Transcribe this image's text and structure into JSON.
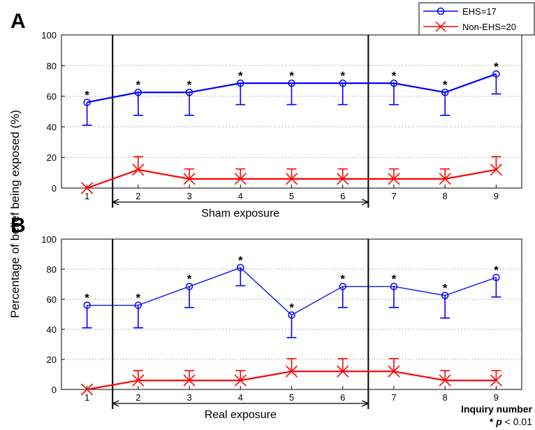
{
  "figure": {
    "ylabel": "Percentage of belief being exposed (%)",
    "xlabel": "Inquiry number",
    "footnote": "* p < 0.01",
    "footnote_star": "*",
    "footnote_p": "p",
    "footnote_rest": " < 0.01",
    "colors": {
      "ehs": "#0000ff",
      "non_ehs": "#ff0000",
      "axis": "#000000",
      "grid": "#808080"
    }
  },
  "chart_data": [
    {
      "type": "line",
      "panel": "A",
      "x": [
        1,
        2,
        3,
        4,
        5,
        6,
        7,
        8,
        9
      ],
      "xlim": [
        0.5,
        9.5
      ],
      "ylim": [
        0,
        100
      ],
      "yticks": [
        0,
        20,
        40,
        60,
        80,
        100
      ],
      "grid": true,
      "legend": {
        "position": "top-right",
        "entries": [
          "EHS=17",
          "Non-EHS=20"
        ]
      },
      "bracket_label": "Sham exposure",
      "bracket_range": [
        1.5,
        6.5
      ],
      "series": [
        {
          "name": "EHS=17",
          "color": "#0000ff",
          "marker": "circle",
          "values": [
            56,
            62.5,
            62.5,
            68.5,
            68.5,
            68.5,
            68.5,
            62.5,
            74.5
          ],
          "error": [
            15,
            15,
            15,
            14,
            14,
            14,
            14,
            15,
            13
          ],
          "significant": [
            true,
            true,
            true,
            true,
            true,
            true,
            true,
            true,
            true
          ]
        },
        {
          "name": "Non-EHS=20",
          "color": "#ff0000",
          "marker": "x",
          "values": [
            0,
            12,
            6,
            6,
            6,
            6,
            6,
            6,
            12
          ],
          "error": [
            0,
            8.5,
            6.5,
            6.5,
            6.5,
            6.5,
            6.5,
            6.5,
            8.5
          ]
        }
      ]
    },
    {
      "type": "line",
      "panel": "B",
      "x": [
        1,
        2,
        3,
        4,
        5,
        6,
        7,
        8,
        9
      ],
      "xlim": [
        0.5,
        9.5
      ],
      "ylim": [
        0,
        100
      ],
      "yticks": [
        0,
        20,
        40,
        60,
        80,
        100
      ],
      "grid": true,
      "bracket_label": "Real exposure",
      "bracket_range": [
        1.5,
        6.5
      ],
      "series": [
        {
          "name": "EHS=17",
          "color": "#0000ff",
          "marker": "circle",
          "values": [
            56,
            56,
            68.5,
            81,
            49.5,
            68.5,
            68.5,
            62.5,
            74.5
          ],
          "error": [
            15,
            15,
            14,
            12,
            15,
            14,
            14,
            15,
            13
          ],
          "significant": [
            true,
            true,
            true,
            true,
            true,
            true,
            true,
            true,
            true
          ]
        },
        {
          "name": "Non-EHS=20",
          "color": "#ff0000",
          "marker": "x",
          "values": [
            0,
            6,
            6,
            6,
            12,
            12,
            12,
            6,
            6
          ],
          "error": [
            0,
            6.5,
            6.5,
            6.5,
            8.5,
            8.5,
            8.5,
            6.5,
            6.5
          ]
        }
      ]
    }
  ]
}
